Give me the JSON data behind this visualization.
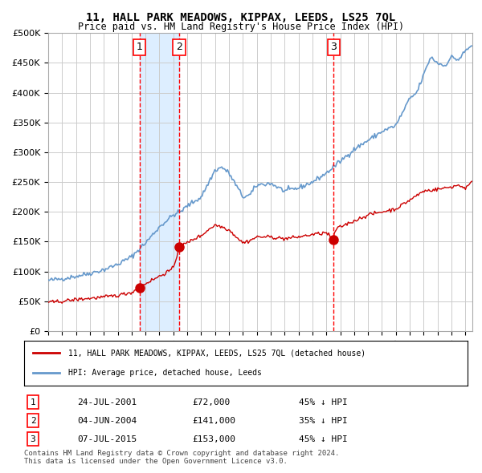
{
  "title": "11, HALL PARK MEADOWS, KIPPAX, LEEDS, LS25 7QL",
  "subtitle": "Price paid vs. HM Land Registry's House Price Index (HPI)",
  "legend_line1": "11, HALL PARK MEADOWS, KIPPAX, LEEDS, LS25 7QL (detached house)",
  "legend_line2": "HPI: Average price, detached house, Leeds",
  "footer1": "Contains HM Land Registry data © Crown copyright and database right 2024.",
  "footer2": "This data is licensed under the Open Government Licence v3.0.",
  "transactions": [
    {
      "num": 1,
      "date": "24-JUL-2001",
      "price": "£72,000",
      "hpi": "45% ↓ HPI",
      "year": 2001.56
    },
    {
      "num": 2,
      "date": "04-JUN-2004",
      "price": "£141,000",
      "hpi": "35% ↓ HPI",
      "year": 2004.42
    },
    {
      "num": 3,
      "date": "07-JUL-2015",
      "price": "£153,000",
      "hpi": "45% ↓ HPI",
      "year": 2015.52
    }
  ],
  "transaction_values": [
    72000,
    141000,
    153000
  ],
  "hpi_color": "#6699cc",
  "price_color": "#cc0000",
  "highlight_color": "#ddeeff",
  "background_color": "#ffffff",
  "grid_color": "#cccccc",
  "dashed_line_color": "#ff0000",
  "ylim": [
    0,
    500000
  ],
  "xlim_start": 1995.0,
  "xlim_end": 2025.5
}
